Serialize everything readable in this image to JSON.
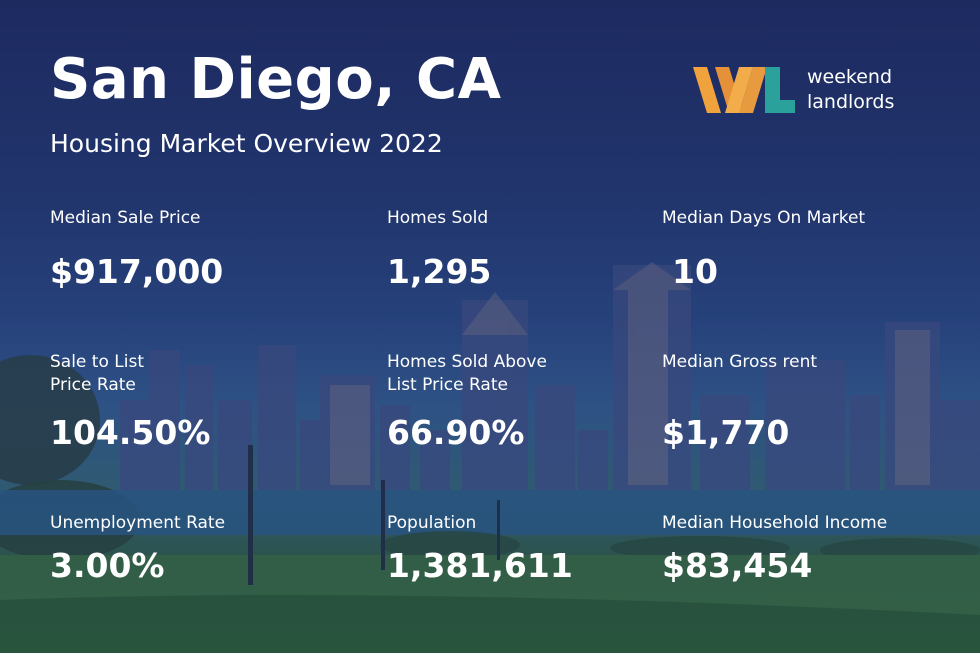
{
  "title": "San Diego, CA",
  "subtitle": "Housing Market Overview 2022",
  "logo": {
    "line1": "weekend",
    "line2": "landlords"
  },
  "colors": {
    "orange": "#f0a23c",
    "teal": "#2aa19a",
    "overlay": "#1e2d64"
  },
  "stats": [
    {
      "label": "Median Sale Price",
      "value": "$917,000"
    },
    {
      "label": "Homes Sold",
      "value": "1,295"
    },
    {
      "label": "Median Days On Market",
      "value": "10"
    },
    {
      "label_line1": "Sale to List",
      "label_line2": "Price Rate",
      "value": "104.50%"
    },
    {
      "label_line1": "Homes Sold Above",
      "label_line2": "List Price Rate",
      "value": "66.90%"
    },
    {
      "label": "Median Gross rent",
      "value": "$1,770"
    },
    {
      "label": "Unemployment Rate",
      "value": "3.00%"
    },
    {
      "label": "Population",
      "value": "1,381,611"
    },
    {
      "label": "Median Household Income",
      "value": "$83,454"
    }
  ]
}
